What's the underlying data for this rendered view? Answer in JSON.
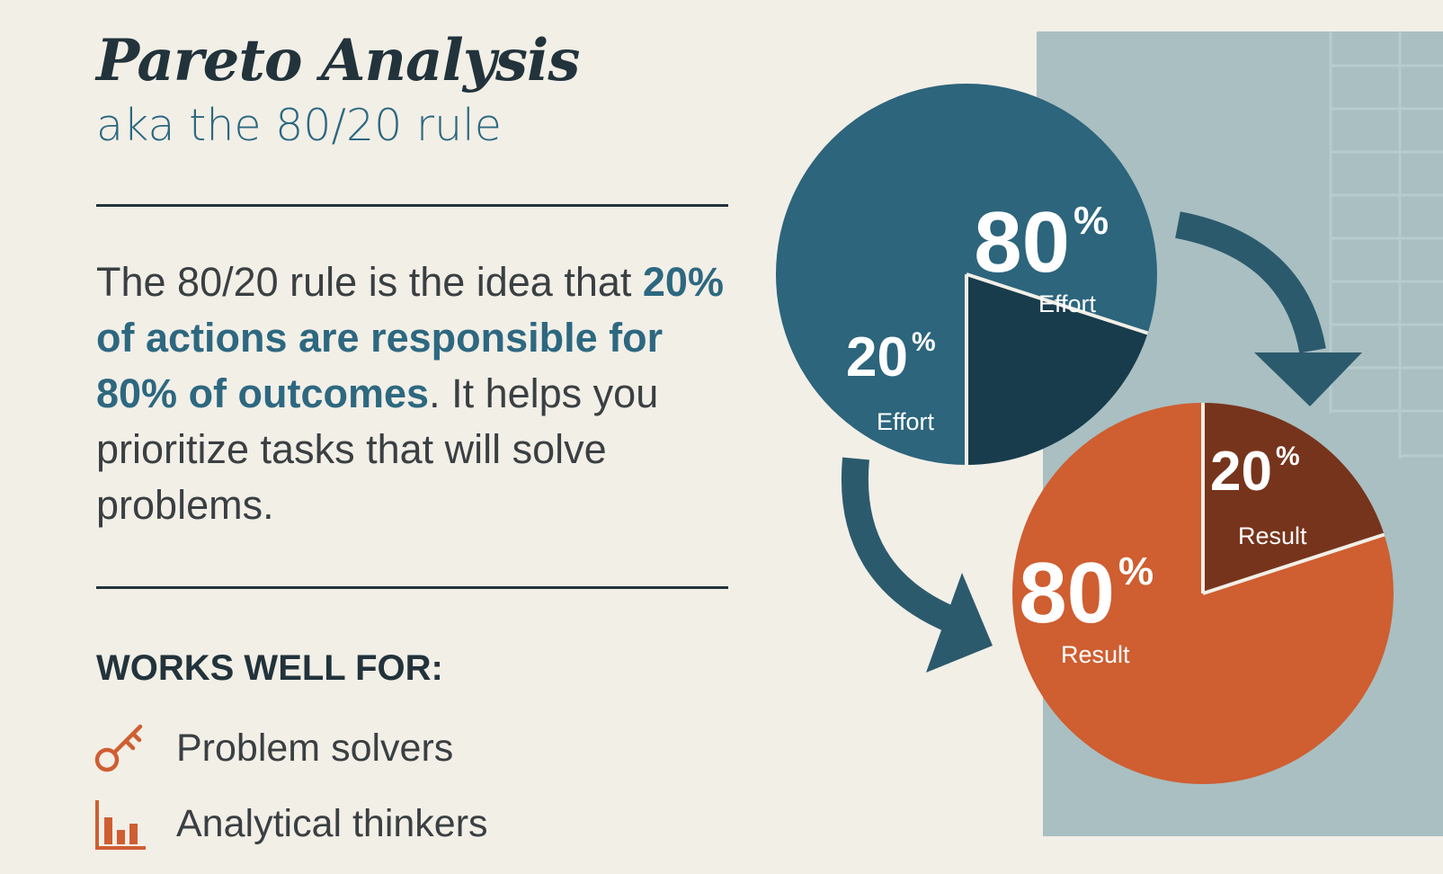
{
  "header": {
    "title": "Pareto Analysis",
    "subtitle": "aka the 80/20 rule"
  },
  "description": {
    "lead": "The 80/20 rule is the idea that ",
    "emphasis": "20% of actions are responsible for 80% of outcomes",
    "tail": ". It helps you prioritize tasks that will solve problems."
  },
  "works_well": {
    "heading": "WORKS WELL FOR:",
    "items": [
      {
        "label": "Problem solvers",
        "icon": "key-icon"
      },
      {
        "label": "Analytical thinkers",
        "icon": "bar-chart-icon"
      }
    ]
  },
  "colors": {
    "background": "#f2efe7",
    "panel": "#a9bfc2",
    "effort_major": "#2c657c",
    "effort_minor": "#183c4c",
    "result_major": "#cf5e31",
    "result_minor": "#77341c",
    "arrow": "#2c5a6d",
    "text_dark": "#22333b",
    "accent": "#2d6880",
    "icon": "#cf5e31"
  },
  "chart_data": [
    {
      "type": "pie",
      "name": "effort",
      "slices": [
        {
          "value": 80,
          "value_label": "80",
          "unit": "%",
          "label": "Effort"
        },
        {
          "value": 20,
          "value_label": "20",
          "unit": "%",
          "label": "Effort"
        }
      ]
    },
    {
      "type": "pie",
      "name": "result",
      "slices": [
        {
          "value": 20,
          "value_label": "20",
          "unit": "%",
          "label": "Result"
        },
        {
          "value": 80,
          "value_label": "80",
          "unit": "%",
          "label": "Result"
        }
      ]
    }
  ]
}
